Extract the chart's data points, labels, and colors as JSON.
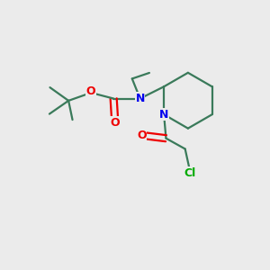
{
  "background_color": "#ebebeb",
  "bond_color": "#3a7a5a",
  "nitrogen_color": "#0000ee",
  "oxygen_color": "#ee0000",
  "chlorine_color": "#00aa00",
  "figsize": [
    3.0,
    3.0
  ],
  "dpi": 100,
  "xlim": [
    0,
    10
  ],
  "ylim": [
    0,
    10
  ]
}
